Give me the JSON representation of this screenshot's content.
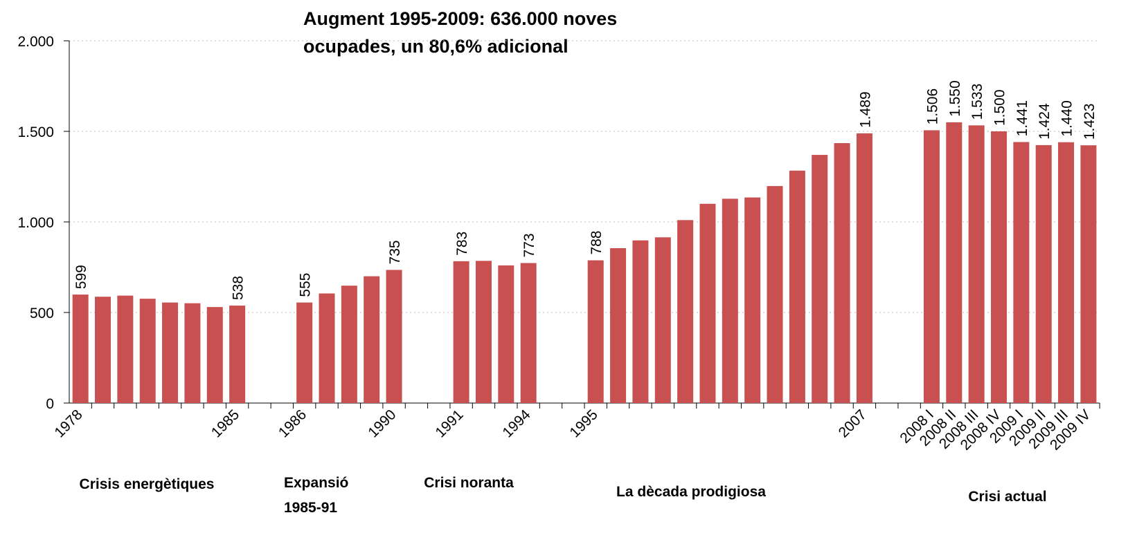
{
  "chart_data": {
    "type": "bar",
    "title": [
      "Augment 1995-2009:  636.000 noves",
      "ocupades, un  80,6% adicional"
    ],
    "color": "#c85050",
    "grid": true,
    "ylim": [
      0,
      2000
    ],
    "yticks": [
      0,
      500,
      {
        "value": 1000,
        "label": "1.000"
      },
      {
        "value": 1500,
        "label": "1.500"
      },
      {
        "value": 2000,
        "label": "2.000"
      }
    ],
    "categories": [
      "1978",
      null,
      null,
      null,
      null,
      null,
      null,
      "1985",
      null,
      null,
      "1986",
      null,
      null,
      null,
      "1990",
      null,
      null,
      "1991",
      null,
      null,
      "1994",
      null,
      null,
      "1995",
      null,
      null,
      null,
      null,
      null,
      null,
      null,
      null,
      null,
      null,
      null,
      "2007",
      null,
      null,
      "2008 I",
      "2008 II",
      "2008 III",
      "2008 IV",
      "2009 I",
      "2009 II",
      "2009 III",
      "2009 IV"
    ],
    "values": [
      599,
      587,
      593,
      576,
      555,
      551,
      530,
      538,
      null,
      null,
      555,
      605,
      648,
      700,
      735,
      null,
      null,
      783,
      785,
      760,
      773,
      null,
      null,
      788,
      855,
      898,
      915,
      1010,
      1100,
      1128,
      1135,
      1198,
      1283,
      1370,
      1435,
      1489,
      null,
      null,
      1506,
      1550,
      1533,
      1500,
      1441,
      1424,
      1440,
      1423
    ],
    "value_labels": [
      "599",
      null,
      null,
      null,
      null,
      null,
      null,
      "538",
      null,
      null,
      "555",
      null,
      null,
      null,
      "735",
      null,
      null,
      "783",
      null,
      null,
      "773",
      null,
      null,
      "788",
      null,
      null,
      null,
      null,
      null,
      null,
      null,
      null,
      null,
      null,
      null,
      "1.489",
      null,
      null,
      "1.506",
      "1.550",
      "1.533",
      "1.500",
      "1.441",
      "1.424",
      "1.440",
      "1.423"
    ],
    "annotations": [
      [
        "Crisis energètiques"
      ],
      [
        "Expansió",
        "1985-91"
      ],
      [
        "Crisi noranta"
      ],
      [
        "La dècada prodigiosa"
      ],
      [
        "Crisi actual"
      ]
    ]
  }
}
